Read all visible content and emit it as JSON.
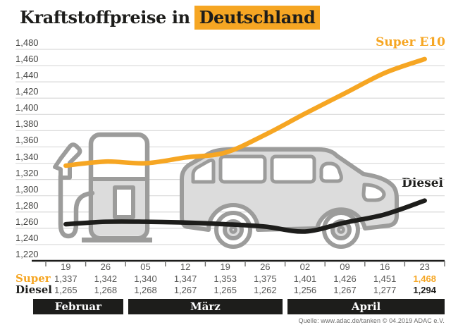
{
  "title": {
    "prefix": "Kraftstoffpreise in",
    "highlight": "Deutschland"
  },
  "legend": {
    "super": "Super E10",
    "diesel": "Diesel"
  },
  "colors": {
    "accent_orange": "#F6A623",
    "line_black": "#1D1D1B",
    "grid_gray": "#D9D9D9",
    "value_gray": "#575756",
    "illustration_stroke": "#9C9C9B",
    "illustration_fill": "#DCDCDC",
    "month_band_bg": "#1D1D1B"
  },
  "chart_data": {
    "type": "line",
    "title": "Kraftstoffpreise in Deutschland",
    "x_tick_labels": [
      "19",
      "26",
      "05",
      "12",
      "19",
      "26",
      "02",
      "09",
      "16",
      "23"
    ],
    "months": [
      {
        "label": "Februar",
        "span": 2
      },
      {
        "label": "März",
        "span": 4
      },
      {
        "label": "April",
        "span": 4
      }
    ],
    "y_tick_labels": [
      "1,480",
      "1,460",
      "1,440",
      "1,420",
      "1,400",
      "1,380",
      "1,360",
      "1,340",
      "1,320",
      "1,300",
      "1,280",
      "1,260",
      "1,240",
      "1,220"
    ],
    "ylim": [
      1220,
      1480
    ],
    "y_step": 20,
    "grid": true,
    "legend_position": "labels-at-line-ends",
    "series": [
      {
        "name": "Super E10",
        "color": "#F6A623",
        "values": [
          1337,
          1342,
          1340,
          1347,
          1353,
          1375,
          1401,
          1426,
          1451,
          1468
        ]
      },
      {
        "name": "Diesel",
        "color": "#1D1D1B",
        "values": [
          1265,
          1268,
          1268,
          1267,
          1265,
          1262,
          1256,
          1267,
          1277,
          1294
        ]
      }
    ]
  },
  "table": {
    "row_labels": {
      "super": "Super",
      "diesel": "Diesel"
    },
    "super_values": [
      "1,337",
      "1,342",
      "1,340",
      "1,347",
      "1,353",
      "1,375",
      "1,401",
      "1,426",
      "1,451",
      "1,468"
    ],
    "diesel_values": [
      "1,265",
      "1,268",
      "1,268",
      "1,267",
      "1,265",
      "1,262",
      "1,256",
      "1,267",
      "1,277",
      "1,294"
    ]
  },
  "source": "Quelle: www.adac.de/tanken   © 04.2019   ADAC e.V."
}
